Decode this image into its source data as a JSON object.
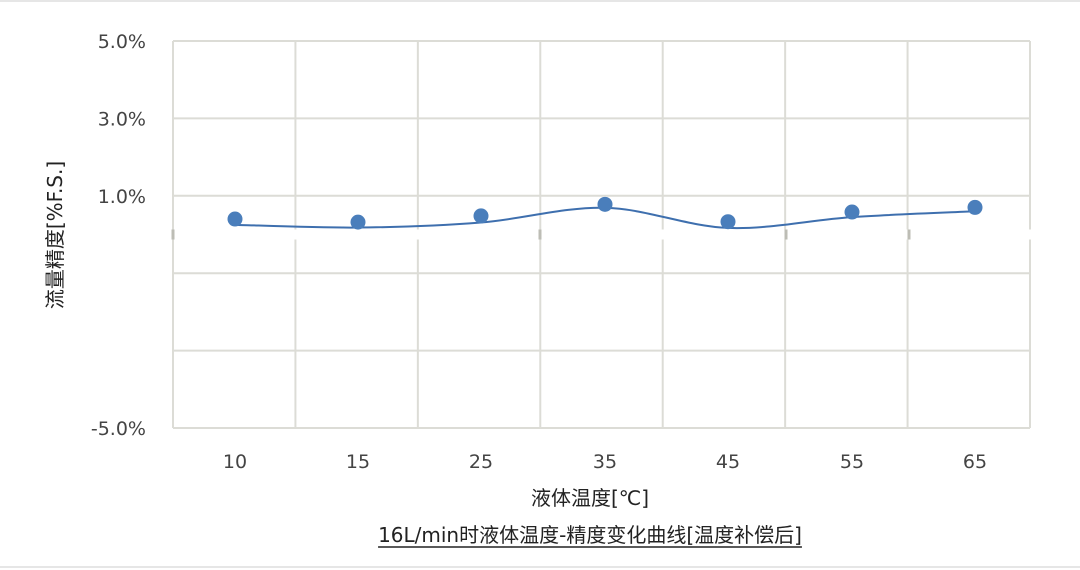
{
  "chart_data": {
    "type": "line",
    "title": "16L/min时液体温度-精度变化曲线[温度补偿后]",
    "xlabel": "液体温度[℃]",
    "ylabel": "流量精度[%F.S.]",
    "categories": [
      "10",
      "15",
      "25",
      "35",
      "45",
      "55",
      "65"
    ],
    "yticks": [
      {
        "value": 5.0,
        "label": "5.0%"
      },
      {
        "value": 3.0,
        "label": "3.0%"
      },
      {
        "value": 1.0,
        "label": "1.0%"
      },
      {
        "value": -5.0,
        "label": "-5.0%"
      }
    ],
    "ylim": [
      -5.0,
      5.0
    ],
    "series": [
      {
        "values": [
          0.4,
          0.32,
          0.48,
          0.78,
          0.33,
          0.58,
          0.7
        ],
        "line_values": [
          0.25,
          0.18,
          0.31,
          0.69,
          0.17,
          0.45,
          0.6
        ]
      }
    ],
    "grid": true,
    "legend": "none",
    "colors": {
      "series": "#4a7ebb",
      "series_line": "#3e6fae",
      "grid": "#dcdcd6"
    }
  }
}
